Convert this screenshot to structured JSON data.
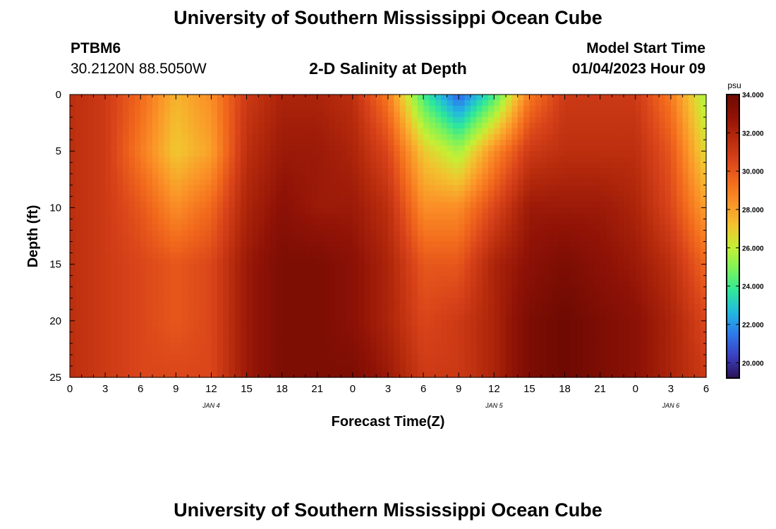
{
  "header": {
    "title": "University of Southern Mississippi Ocean Cube",
    "station": "PTBM6",
    "coords": "30.2120N  88.5050W",
    "subtitle": "2-D Salinity at Depth",
    "model_start_label": "Model Start Time",
    "model_start_value": "01/04/2023 Hour 09"
  },
  "footer": {
    "title": "University of Southern Mississippi Ocean Cube"
  },
  "chart_data": {
    "type": "heatmap",
    "title": "2-D Salinity at Depth",
    "xlabel": "Forecast Time(Z)",
    "ylabel": "Depth (ft)",
    "x_tick_labels": [
      "0",
      "3",
      "6",
      "9",
      "12",
      "15",
      "18",
      "21",
      "0",
      "3",
      "6",
      "9",
      "12",
      "15",
      "18",
      "21",
      "0",
      "3",
      "6"
    ],
    "x_day_labels": [
      {
        "label": "JAN 4",
        "hour": 12
      },
      {
        "label": "JAN 5",
        "hour": 36
      },
      {
        "label": "JAN 6",
        "hour": 51
      }
    ],
    "xlim_hours": [
      0,
      54
    ],
    "ylim_ft": [
      0,
      25
    ],
    "y_ticks": [
      0,
      5,
      10,
      15,
      20,
      25
    ],
    "colorbar": {
      "unit": "psu",
      "min": 19.2,
      "max": 34.0,
      "tick_labels": [
        "34.000",
        "32.000",
        "30.000",
        "28.000",
        "26.000",
        "24.000",
        "22.000",
        "20.000"
      ],
      "tick_values": [
        34,
        32,
        30,
        28,
        26,
        24,
        22,
        20
      ],
      "colors": [
        "#2b1155",
        "#3b3fc0",
        "#2f78ea",
        "#22b8e0",
        "#2ee89a",
        "#7cf35a",
        "#c5ef34",
        "#f3c22f",
        "#fb9428",
        "#f26a1c",
        "#d9431a",
        "#b52a0c",
        "#8f1206",
        "#6e0a02"
      ]
    },
    "salinity_samples": {
      "depths_ft": [
        0,
        5,
        10,
        15,
        20,
        25
      ],
      "hours": [
        0,
        3,
        6,
        9,
        12,
        15,
        18,
        21,
        24,
        27,
        30,
        33,
        36,
        39,
        42,
        45,
        48,
        51,
        54
      ],
      "values": [
        [
          31.5,
          31.0,
          29.5,
          27.5,
          28.5,
          31.0,
          32.0,
          32.0,
          31.5,
          29.0,
          24.0,
          21.0,
          24.0,
          29.0,
          31.0,
          31.0,
          31.0,
          29.0,
          25.5
        ],
        [
          31.5,
          31.0,
          29.0,
          27.0,
          28.0,
          31.5,
          32.5,
          32.5,
          32.0,
          30.5,
          27.0,
          25.5,
          28.5,
          31.0,
          31.5,
          31.5,
          31.5,
          30.0,
          26.5
        ],
        [
          31.5,
          31.0,
          30.0,
          28.5,
          29.5,
          32.0,
          33.0,
          32.5,
          32.5,
          31.5,
          28.5,
          28.5,
          30.5,
          32.5,
          32.5,
          32.5,
          32.0,
          30.5,
          28.0
        ],
        [
          31.5,
          31.0,
          30.5,
          30.0,
          30.5,
          32.5,
          33.5,
          33.5,
          33.0,
          32.0,
          30.0,
          30.0,
          32.0,
          33.0,
          33.5,
          33.0,
          32.5,
          31.5,
          29.5
        ],
        [
          31.5,
          31.0,
          30.5,
          30.0,
          30.5,
          32.5,
          33.5,
          33.5,
          33.0,
          32.0,
          30.5,
          31.0,
          32.0,
          33.5,
          34.0,
          33.5,
          33.0,
          32.0,
          30.5
        ],
        [
          31.5,
          31.0,
          30.5,
          30.5,
          30.5,
          32.5,
          33.5,
          33.5,
          33.5,
          32.5,
          31.0,
          31.0,
          32.0,
          33.5,
          34.0,
          33.5,
          33.0,
          32.0,
          31.0
        ]
      ]
    }
  }
}
